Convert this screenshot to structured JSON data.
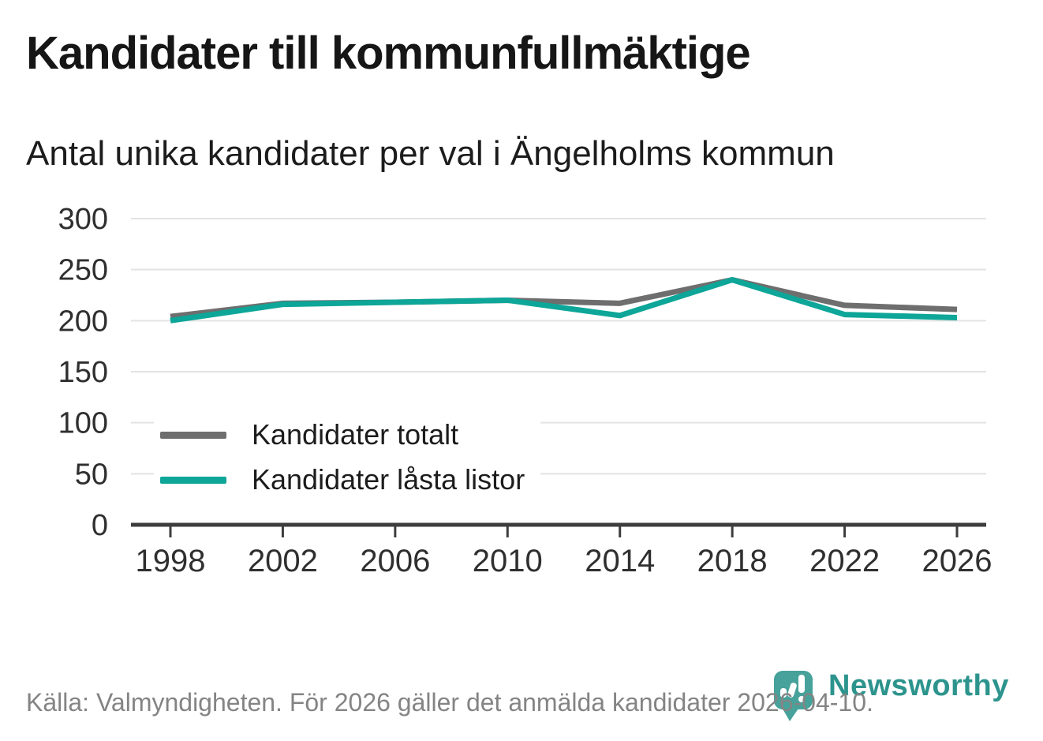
{
  "header": {
    "title": "Kandidater till kommunfullmäktige",
    "subtitle": "Antal unika kandidater per val i Ängelholms kommun"
  },
  "chart_data": {
    "type": "line",
    "x": [
      1998,
      2002,
      2006,
      2010,
      2014,
      2018,
      2022,
      2026
    ],
    "series": [
      {
        "name": "Kandidater totalt",
        "color": "#6e6e6e",
        "values": [
          204,
          217,
          218,
          220,
          217,
          240,
          215,
          211
        ]
      },
      {
        "name": "Kandidater låsta listor",
        "color": "#0da698",
        "values": [
          200,
          216,
          218,
          220,
          205,
          240,
          206,
          203
        ]
      }
    ],
    "ylim": [
      0,
      300
    ],
    "yticks": [
      0,
      50,
      100,
      150,
      200,
      250,
      300
    ],
    "grid": "horizontal",
    "gridline_color": "#e3e3e3",
    "axis_color": "#3d3d3d",
    "tick_label_color": "#2f2f2f",
    "legend_position": "inside-left"
  },
  "footer": {
    "source": "Källa: Valmyndigheten. För 2026 gäller det anmälda kandidater 2026-04-10."
  },
  "logo": {
    "text": "Newsworthy",
    "icon": "newsworthy-pin-chart-icon",
    "text_color": "#2d948d",
    "icon_color": "#46a29b"
  }
}
